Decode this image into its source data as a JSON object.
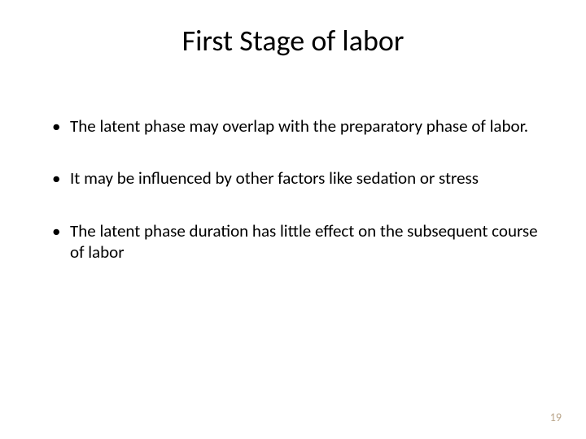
{
  "slide": {
    "title": "First Stage of labor",
    "bullets": [
      "The latent phase may overlap with the preparatory phase of labor.",
      "It may be influenced by other factors like sedation or stress",
      "The latent phase duration has little effect on the subsequent course of labor"
    ],
    "page_number": "19",
    "colors": {
      "background": "#ffffff",
      "text": "#000000",
      "page_number": "#b9a58a"
    },
    "typography": {
      "title_fontsize": 36,
      "body_fontsize": 21,
      "page_number_fontsize": 14,
      "font_family": "Calibri"
    }
  }
}
